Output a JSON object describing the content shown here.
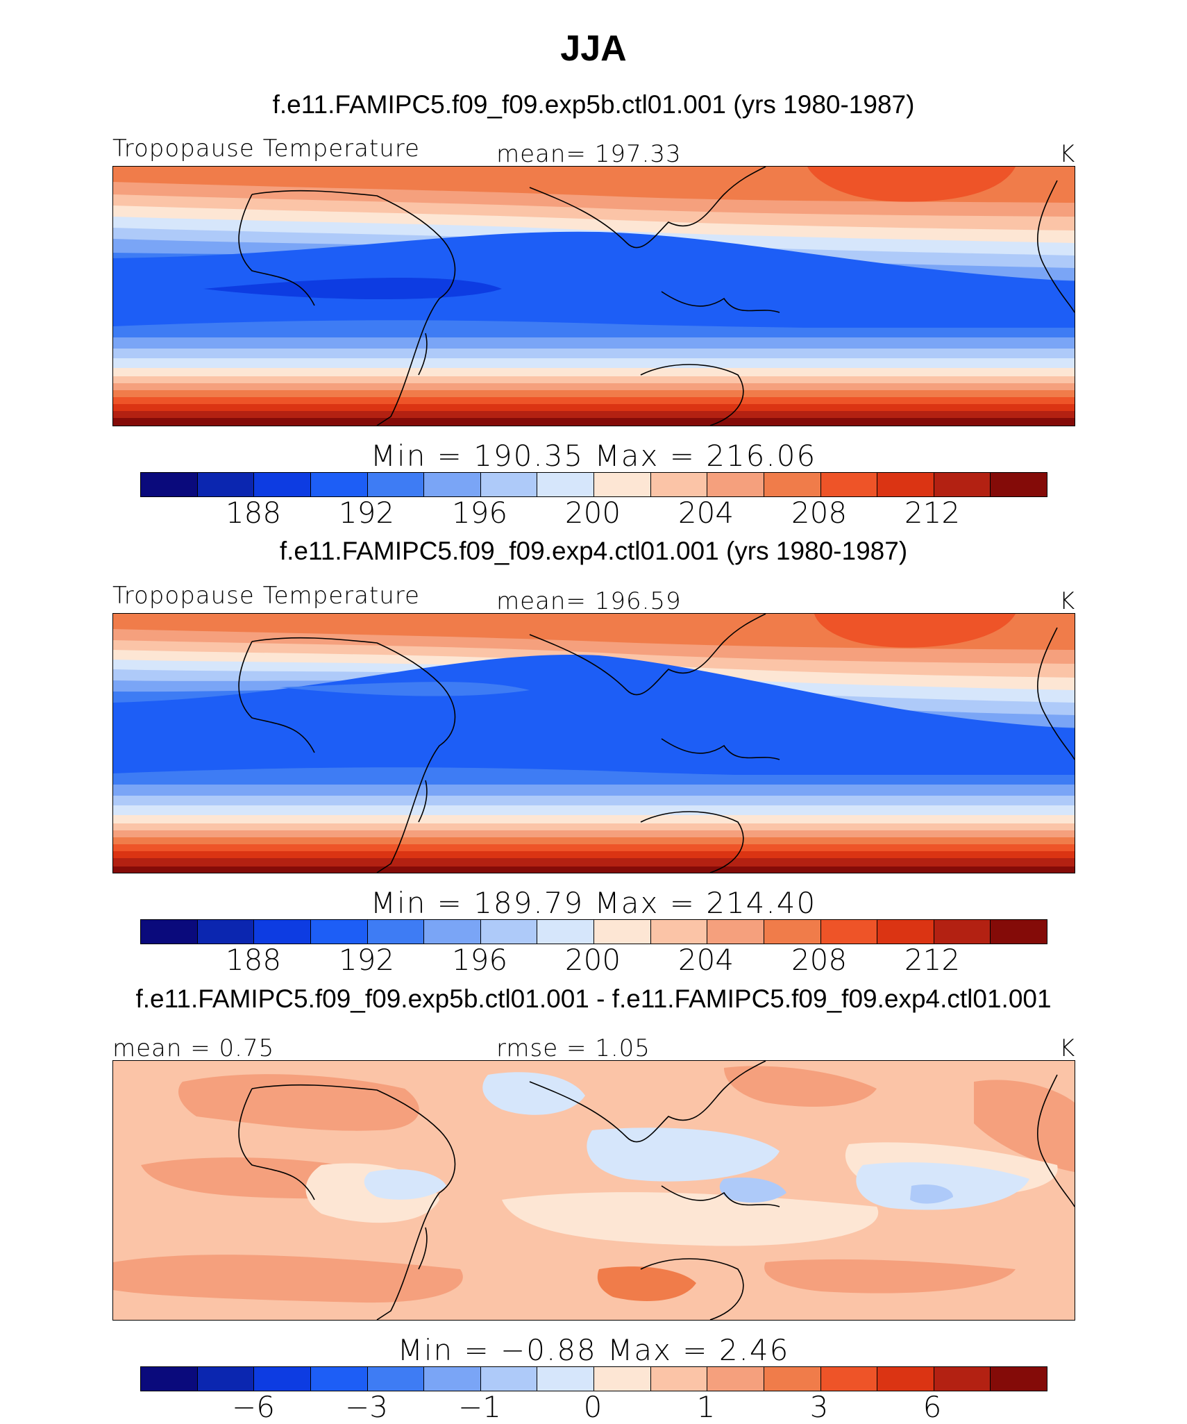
{
  "title": "JJA",
  "colors": [
    "#0a0a7c",
    "#0b26b0",
    "#0d3ce2",
    "#1d5ef6",
    "#3e7cf4",
    "#7aa5f6",
    "#aecaf9",
    "#d6e6fb",
    "#fde6d4",
    "#fbc4a7",
    "#f5a07d",
    "#f07c4a",
    "#ee5428",
    "#db3413",
    "#b32112",
    "#840b08"
  ],
  "chart_data": [
    {
      "type": "heatmap",
      "case_title": "f.e11.FAMIPC5.f09_f09.exp5b.ctl01.001 (yrs 1980-1987)",
      "left_label": "Tropopause Temperature",
      "center_label": "mean=  197.33",
      "units": "K",
      "stat_min": 190.35,
      "stat_max": 216.06,
      "minmax_text": "Min  =  190.35  Max  =  216.06",
      "levels": [
        186,
        188,
        190,
        192,
        194,
        196,
        198,
        200,
        202,
        204,
        206,
        208,
        210,
        212,
        214
      ],
      "tick_labels": [
        "188",
        "192",
        "196",
        "200",
        "204",
        "208",
        "212"
      ]
    },
    {
      "type": "heatmap",
      "case_title": "f.e11.FAMIPC5.f09_f09.exp4.ctl01.001 (yrs 1980-1987)",
      "left_label": "Tropopause Temperature",
      "center_label": "mean=  196.59",
      "units": "K",
      "stat_min": 189.79,
      "stat_max": 214.4,
      "minmax_text": "Min  =  189.79  Max  =  214.40",
      "levels": [
        186,
        188,
        190,
        192,
        194,
        196,
        198,
        200,
        202,
        204,
        206,
        208,
        210,
        212,
        214
      ],
      "tick_labels": [
        "188",
        "192",
        "196",
        "200",
        "204",
        "208",
        "212"
      ]
    },
    {
      "type": "heatmap",
      "case_title": "f.e11.FAMIPC5.f09_f09.exp5b.ctl01.001 - f.e11.FAMIPC5.f09_f09.exp4.ctl01.001",
      "left_label": "mean =    0.75",
      "center_label": "rmse =    1.05",
      "units": "K",
      "stat_min": -0.88,
      "stat_max": 2.46,
      "minmax_text": "Min  =   −0.88  Max  =    2.46",
      "tick_labels": [
        "−6",
        "−3",
        "−1",
        "0",
        "1",
        "3",
        "6"
      ]
    }
  ]
}
